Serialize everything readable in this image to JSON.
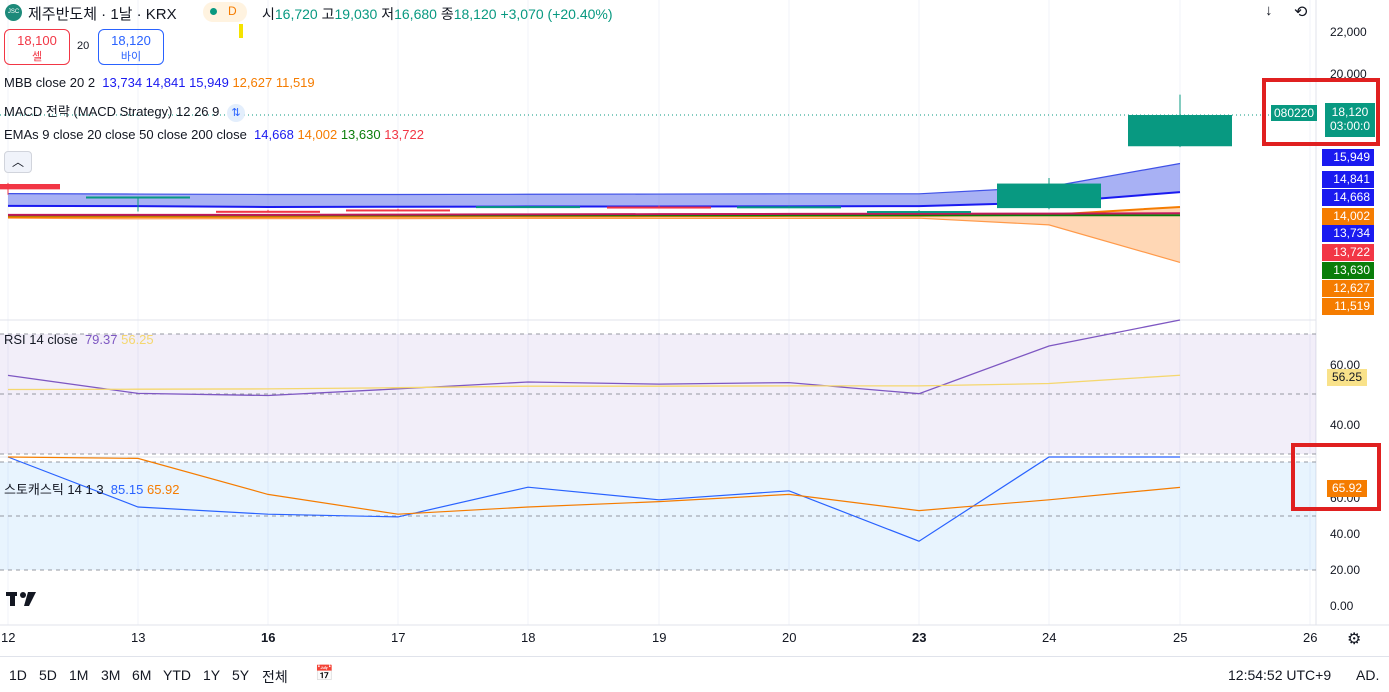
{
  "header": {
    "symbol_badge": "JSC",
    "title": "제주반도체 · 1날 · KRX",
    "market_dot_label": "D",
    "ohlc": {
      "o_label": "시",
      "o": "16,720",
      "h_label": "고",
      "h": "19,030",
      "l_label": "저",
      "l": "16,680",
      "c_label": "종",
      "c": "18,120",
      "change": "+3,070 (+20.40%)"
    }
  },
  "trade": {
    "sell_price": "18,100",
    "sell_label": "셀",
    "spread": "20",
    "buy_price": "18,120",
    "buy_label": "바이"
  },
  "legends": {
    "mbb": {
      "name": "MBB close 20 2",
      "v1": "13,734",
      "v2": "14,841",
      "v3": "15,949",
      "v4": "12,627",
      "v5": "11,519"
    },
    "macd": {
      "name": "MACD 전략 (MACD Strategy) 12 26 9"
    },
    "ema": {
      "name": "EMAs 9 close 20 close 50 close 200 close",
      "v1": "14,668",
      "v2": "14,002",
      "v3": "13,630",
      "v4": "13,722"
    },
    "rsi": {
      "name": "RSI 14 close",
      "v1": "79.37",
      "v2": "56.25"
    },
    "stoch": {
      "name": "스토캐스틱 14 1 3",
      "v1": "85.15",
      "v2": "65.92"
    }
  },
  "price_axis": {
    "ticks": [
      "22,000",
      "20,000"
    ],
    "symbol_code": "080220",
    "last_price": "18,120",
    "countdown": "03:00:0",
    "level_tags": [
      {
        "text": "15,949",
        "color": "#1a1af0",
        "value": 15949
      },
      {
        "text": "14,841",
        "color": "#1a1af0",
        "value": 14841
      },
      {
        "text": "14,668",
        "color": "#1a1af0",
        "value": 14668
      },
      {
        "text": "14,002",
        "color": "#f57c00",
        "value": 14002
      },
      {
        "text": "13,734",
        "color": "#1a1af0",
        "value": 13734
      },
      {
        "text": "13,722",
        "color": "#f23645",
        "value": 13722
      },
      {
        "text": "13,630",
        "color": "#0a7d0a",
        "value": 13630
      },
      {
        "text": "12,627",
        "color": "#f57c00",
        "value": 12627
      },
      {
        "text": "11,519",
        "color": "#f57c00",
        "value": 11519
      }
    ]
  },
  "rsi_axis": {
    "ticks": [
      "60.00",
      "40.00"
    ],
    "tag": "56.25"
  },
  "stoch_axis": {
    "ticks": [
      "60.00",
      "40.00",
      "20.00",
      "0.00"
    ],
    "tag": "65.92"
  },
  "time_axis": [
    "12",
    "13",
    "16",
    "17",
    "18",
    "19",
    "20",
    "23",
    "24",
    "25",
    "26"
  ],
  "bottom_bar": {
    "ranges": [
      "1D",
      "5D",
      "1M",
      "3M",
      "6M",
      "YTD",
      "1Y",
      "5Y",
      "전체"
    ],
    "clock": "12:54:52 UTC+9",
    "adj_label": "AD."
  },
  "colors": {
    "up": "#089981",
    "down": "#f23645",
    "ema9": "#1a1af0",
    "ema20": "#f57c00",
    "ema50": "#0a7d0a",
    "ema200": "#f23645",
    "highlight": "#e02020"
  },
  "chart_data": [
    {
      "type": "candlestick",
      "categories": [
        "12",
        "13",
        "16",
        "17",
        "18",
        "19",
        "20",
        "23",
        "24",
        "25"
      ],
      "open": [
        15030,
        14400,
        13830,
        13890,
        14000,
        14020,
        13990,
        13800,
        13950,
        16720
      ],
      "high": [
        15080,
        14420,
        13870,
        13920,
        14050,
        14060,
        14050,
        13860,
        15300,
        19030
      ],
      "low": [
        14550,
        13800,
        13780,
        13850,
        13970,
        13980,
        13960,
        13760,
        13900,
        16680
      ],
      "close": [
        14790,
        14470,
        13790,
        13880,
        14040,
        14010,
        14030,
        13820,
        15050,
        18120
      ],
      "series": [
        {
          "name": "MBB upper",
          "values": [
            14600,
            14580,
            14560,
            14560,
            14570,
            14580,
            14590,
            14590,
            14900,
            15949
          ]
        },
        {
          "name": "MBB lower",
          "values": [
            13500,
            13470,
            13480,
            13480,
            13490,
            13490,
            13490,
            13500,
            13200,
            11519
          ]
        },
        {
          "name": "EMA 9",
          "values": [
            14050,
            14040,
            14000,
            14010,
            14020,
            14020,
            14030,
            14040,
            14200,
            14668
          ]
        },
        {
          "name": "EMA 20",
          "values": [
            13550,
            13560,
            13560,
            13570,
            13580,
            13590,
            13600,
            13610,
            13650,
            14002
          ]
        },
        {
          "name": "EMA 50",
          "values": [
            13630,
            13630,
            13630,
            13630,
            13630,
            13630,
            13630,
            13630,
            13630,
            13630
          ]
        },
        {
          "name": "EMA 200",
          "values": [
            13650,
            13650,
            13650,
            13660,
            13670,
            13680,
            13690,
            13700,
            13705,
            13722
          ]
        }
      ]
    },
    {
      "type": "line",
      "categories": [
        "12",
        "13",
        "16",
        "17",
        "18",
        "19",
        "20",
        "23",
        "24",
        "25"
      ],
      "series": [
        {
          "name": "RSI",
          "values": [
            56.2,
            50.2,
            49.5,
            51.7,
            54.0,
            53.3,
            53.8,
            50.1,
            66.0,
            79.37
          ]
        },
        {
          "name": "RSI MA",
          "values": [
            51.5,
            51.6,
            51.7,
            52.1,
            52.6,
            52.6,
            52.7,
            52.7,
            53.5,
            56.25
          ]
        }
      ],
      "ylim": [
        30,
        73
      ]
    },
    {
      "type": "line",
      "categories": [
        "12",
        "13",
        "16",
        "17",
        "18",
        "19",
        "20",
        "23",
        "24",
        "25"
      ],
      "series": [
        {
          "name": "%K",
          "values": [
            83,
            55,
            51,
            49.5,
            66,
            59,
            64,
            36,
            83,
            85.15
          ]
        },
        {
          "name": "%D",
          "values": [
            85,
            82,
            62,
            51,
            55,
            58,
            62,
            53,
            59,
            65.92
          ]
        }
      ],
      "ylim": [
        0,
        82
      ]
    }
  ]
}
